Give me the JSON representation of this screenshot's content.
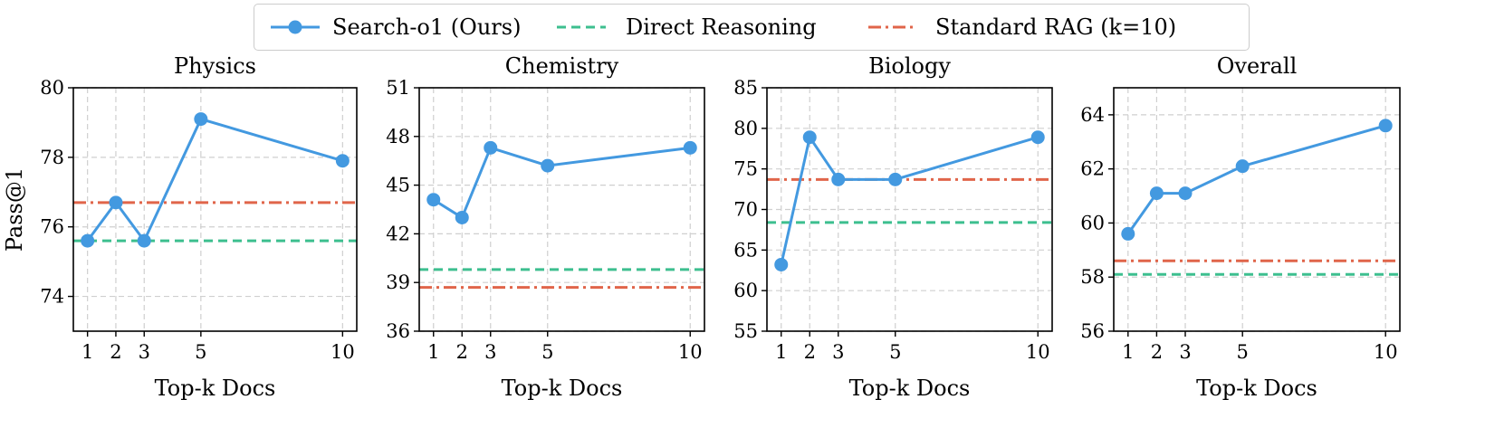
{
  "legend": {
    "items": [
      {
        "label": "Search-o1 (Ours)",
        "color": "#4399e0",
        "style": "solid-marker"
      },
      {
        "label": "Direct Reasoning",
        "color": "#3dbf8f",
        "style": "dashed"
      },
      {
        "label": "Standard RAG (k=10)",
        "color": "#e0654a",
        "style": "dashdot"
      }
    ]
  },
  "chart_data": [
    {
      "type": "line",
      "title": "Physics",
      "xlabel": "Top-k Docs",
      "ylabel": "Pass@1",
      "x": [
        1,
        2,
        3,
        5,
        10
      ],
      "xticks": [
        "1",
        "2",
        "3",
        "5",
        "10"
      ],
      "ylim": [
        73,
        80
      ],
      "yticks": [
        74,
        76,
        78,
        80
      ],
      "grid": true,
      "series": [
        {
          "name": "Search-o1 (Ours)",
          "values": [
            75.6,
            76.7,
            75.6,
            79.1,
            77.9
          ]
        }
      ],
      "hlines": [
        {
          "name": "Direct Reasoning",
          "value": 75.6
        },
        {
          "name": "Standard RAG (k=10)",
          "value": 76.7
        }
      ]
    },
    {
      "type": "line",
      "title": "Chemistry",
      "xlabel": "Top-k Docs",
      "ylabel": "",
      "x": [
        1,
        2,
        3,
        5,
        10
      ],
      "xticks": [
        "1",
        "2",
        "3",
        "5",
        "10"
      ],
      "ylim": [
        36,
        51
      ],
      "yticks": [
        36,
        39,
        42,
        45,
        48,
        51
      ],
      "grid": true,
      "series": [
        {
          "name": "Search-o1 (Ours)",
          "values": [
            44.1,
            43.0,
            47.3,
            46.2,
            47.3
          ]
        }
      ],
      "hlines": [
        {
          "name": "Direct Reasoning",
          "value": 39.8
        },
        {
          "name": "Standard RAG (k=10)",
          "value": 38.7
        }
      ]
    },
    {
      "type": "line",
      "title": "Biology",
      "xlabel": "Top-k Docs",
      "ylabel": "",
      "x": [
        1,
        2,
        3,
        5,
        10
      ],
      "xticks": [
        "1",
        "2",
        "3",
        "5",
        "10"
      ],
      "ylim": [
        55,
        85
      ],
      "yticks": [
        55,
        60,
        65,
        70,
        75,
        80,
        85
      ],
      "grid": true,
      "series": [
        {
          "name": "Search-o1 (Ours)",
          "values": [
            63.2,
            78.9,
            73.7,
            73.7,
            78.9
          ]
        }
      ],
      "hlines": [
        {
          "name": "Direct Reasoning",
          "value": 68.4
        },
        {
          "name": "Standard RAG (k=10)",
          "value": 73.7
        }
      ]
    },
    {
      "type": "line",
      "title": "Overall",
      "xlabel": "Top-k Docs",
      "ylabel": "",
      "x": [
        1,
        2,
        3,
        5,
        10
      ],
      "xticks": [
        "1",
        "2",
        "3",
        "5",
        "10"
      ],
      "ylim": [
        56,
        65
      ],
      "yticks": [
        56,
        58,
        60,
        62,
        64
      ],
      "grid": true,
      "series": [
        {
          "name": "Search-o1 (Ours)",
          "values": [
            59.6,
            61.1,
            61.1,
            62.1,
            63.6
          ]
        }
      ],
      "hlines": [
        {
          "name": "Direct Reasoning",
          "value": 58.1
        },
        {
          "name": "Standard RAG (k=10)",
          "value": 58.6
        }
      ]
    }
  ]
}
